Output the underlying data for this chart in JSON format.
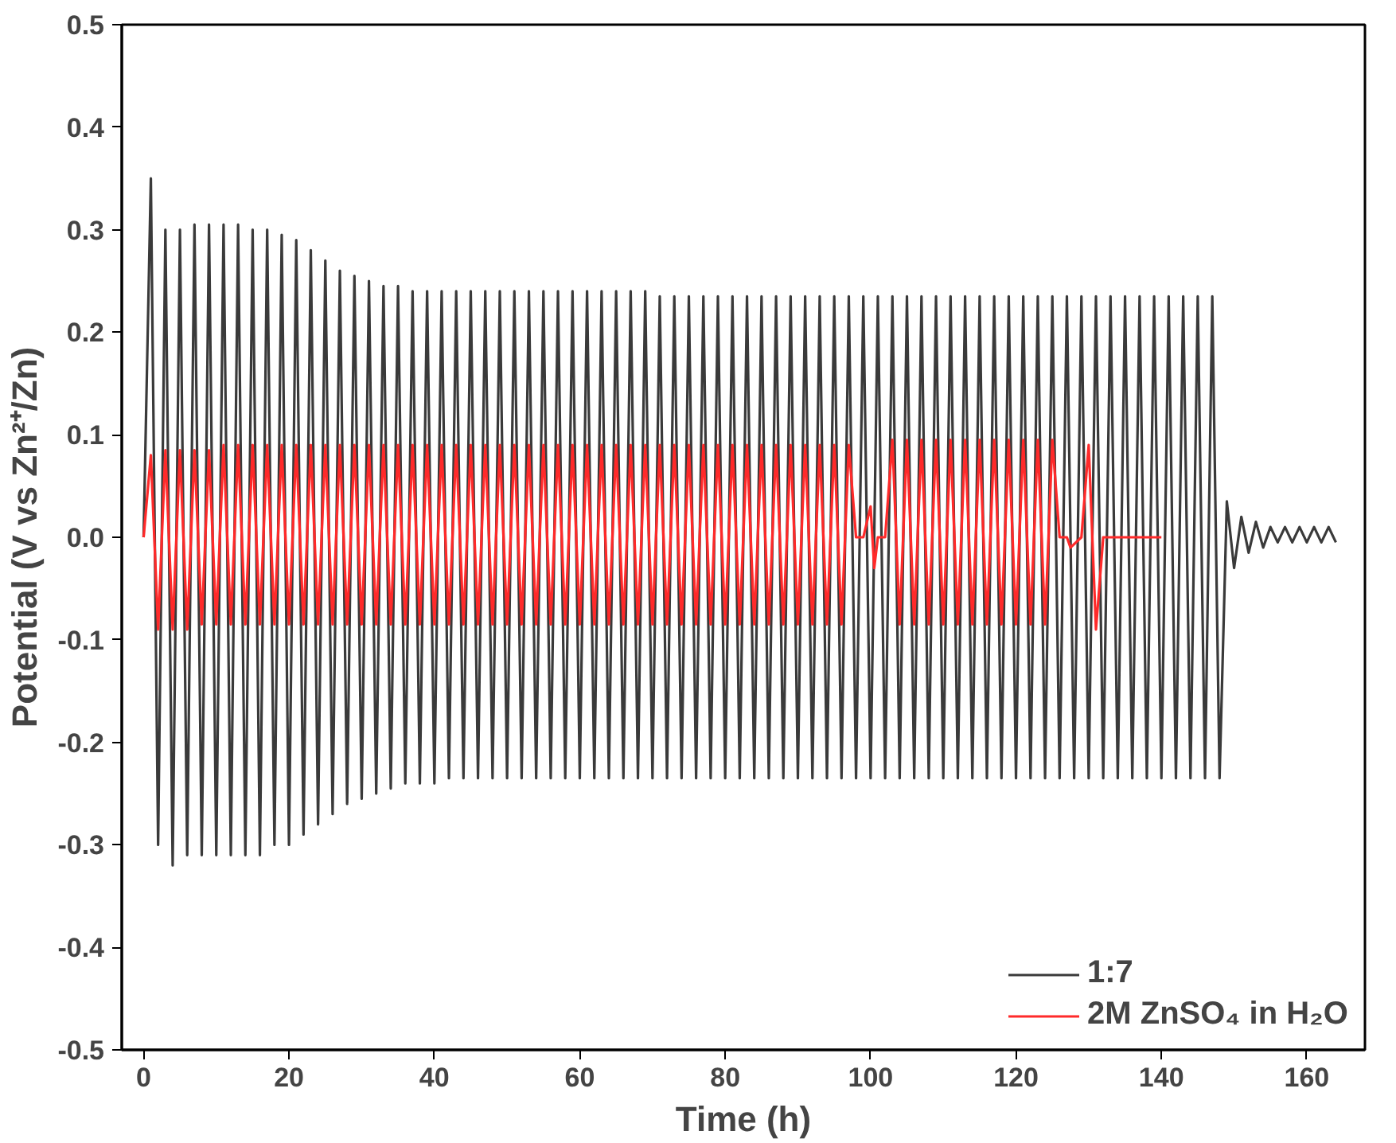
{
  "chart_data": {
    "type": "line",
    "xlabel": "Time (h)",
    "ylabel": "Potential (V vs Zn²⁺/Zn)",
    "xlim": [
      -3,
      168
    ],
    "xticks": [
      0,
      20,
      40,
      60,
      80,
      100,
      120,
      140,
      160
    ],
    "ylim": [
      -0.5,
      0.5
    ],
    "yticks": [
      {
        "value": -0.5,
        "label": "-0.5"
      },
      {
        "value": -0.4,
        "label": "-0.4"
      },
      {
        "value": -0.3,
        "label": "-0.3"
      },
      {
        "value": -0.2,
        "label": "-0.2"
      },
      {
        "value": -0.1,
        "label": "-0.1"
      },
      {
        "value": 0,
        "label": "0.0"
      },
      {
        "value": 0.1,
        "label": "0.1"
      },
      {
        "value": 0.2,
        "label": "0.2"
      },
      {
        "value": 0.3,
        "label": "0.3"
      },
      {
        "value": 0.4,
        "label": "0.4"
      },
      {
        "value": 0.5,
        "label": "0.5"
      }
    ],
    "grid": false,
    "legend": "bottom right",
    "line_style": "solid",
    "series": [
      {
        "name": "1:7",
        "color": "#3a3a3a",
        "x": [
          0,
          1,
          2,
          3,
          4,
          5,
          6,
          7,
          8,
          9,
          10,
          11,
          12,
          13,
          14,
          15,
          16,
          17,
          18,
          19,
          20,
          21,
          22,
          23,
          24,
          25,
          26,
          27,
          28,
          29,
          30,
          31,
          32,
          33,
          34,
          35,
          36,
          37,
          38,
          39,
          40,
          41,
          42,
          43,
          44,
          45,
          46,
          47,
          48,
          49,
          50,
          51,
          52,
          53,
          54,
          55,
          56,
          57,
          58,
          59,
          60,
          61,
          62,
          63,
          64,
          65,
          66,
          67,
          68,
          69,
          70,
          71,
          72,
          73,
          74,
          75,
          76,
          77,
          78,
          79,
          80,
          81,
          82,
          83,
          84,
          85,
          86,
          87,
          88,
          89,
          90,
          91,
          92,
          93,
          94,
          95,
          96,
          97,
          98,
          99,
          100,
          101,
          102,
          103,
          104,
          105,
          106,
          107,
          108,
          109,
          110,
          111,
          112,
          113,
          114,
          115,
          116,
          117,
          118,
          119,
          120,
          121,
          122,
          123,
          124,
          125,
          126,
          127,
          128,
          129,
          130,
          131,
          132,
          133,
          134,
          135,
          136,
          137,
          138,
          139,
          140,
          141,
          142,
          143,
          144,
          145,
          146,
          147,
          148,
          149,
          150,
          151,
          152,
          153,
          154,
          155,
          156,
          157,
          158,
          159,
          160,
          161,
          162,
          163,
          164
        ],
        "values": [
          0.0,
          0.35,
          -0.3,
          0.3,
          -0.32,
          0.3,
          -0.31,
          0.305,
          -0.31,
          0.305,
          -0.31,
          0.305,
          -0.31,
          0.305,
          -0.31,
          0.3,
          -0.31,
          0.3,
          -0.3,
          0.295,
          -0.3,
          0.29,
          -0.29,
          0.28,
          -0.28,
          0.27,
          -0.27,
          0.26,
          -0.26,
          0.255,
          -0.255,
          0.25,
          -0.25,
          0.245,
          -0.245,
          0.245,
          -0.24,
          0.24,
          -0.24,
          0.24,
          -0.24,
          0.24,
          -0.235,
          0.24,
          -0.235,
          0.24,
          -0.235,
          0.24,
          -0.235,
          0.24,
          -0.235,
          0.24,
          -0.235,
          0.24,
          -0.235,
          0.24,
          -0.235,
          0.24,
          -0.235,
          0.24,
          -0.235,
          0.24,
          -0.235,
          0.24,
          -0.235,
          0.24,
          -0.235,
          0.24,
          -0.235,
          0.24,
          -0.235,
          0.235,
          -0.235,
          0.235,
          -0.235,
          0.235,
          -0.235,
          0.235,
          -0.235,
          0.235,
          -0.235,
          0.235,
          -0.235,
          0.235,
          -0.235,
          0.235,
          -0.235,
          0.235,
          -0.235,
          0.235,
          -0.235,
          0.235,
          -0.235,
          0.235,
          -0.235,
          0.235,
          -0.235,
          0.235,
          -0.235,
          0.235,
          -0.235,
          0.235,
          -0.235,
          0.235,
          -0.235,
          0.235,
          -0.235,
          0.235,
          -0.235,
          0.235,
          -0.235,
          0.235,
          -0.235,
          0.235,
          -0.235,
          0.235,
          -0.235,
          0.235,
          -0.235,
          0.235,
          -0.235,
          0.235,
          -0.235,
          0.235,
          -0.235,
          0.235,
          -0.235,
          0.235,
          -0.235,
          0.235,
          -0.235,
          0.235,
          -0.235,
          0.235,
          -0.235,
          0.235,
          -0.235,
          0.235,
          -0.235,
          0.235,
          -0.235,
          0.235,
          -0.235,
          0.235,
          -0.235,
          0.235,
          -0.235,
          0.235,
          -0.235,
          0.035,
          -0.03,
          0.02,
          -0.015,
          0.015,
          -0.01,
          0.01,
          -0.005,
          0.01,
          -0.005,
          0.01,
          -0.005,
          0.01,
          -0.005,
          0.01,
          -0.005
        ]
      },
      {
        "name": "2M ZnSO₄ in H₂O",
        "color": "#ff2a2a",
        "x": [
          0,
          1,
          2,
          3,
          4,
          5,
          6,
          7,
          8,
          9,
          10,
          11,
          12,
          13,
          14,
          15,
          16,
          17,
          18,
          19,
          20,
          21,
          22,
          23,
          24,
          25,
          26,
          27,
          28,
          29,
          30,
          31,
          32,
          33,
          34,
          35,
          36,
          37,
          38,
          39,
          40,
          41,
          42,
          43,
          44,
          45,
          46,
          47,
          48,
          49,
          50,
          51,
          52,
          53,
          54,
          55,
          56,
          57,
          58,
          59,
          60,
          61,
          62,
          63,
          64,
          65,
          66,
          67,
          68,
          69,
          70,
          71,
          72,
          73,
          74,
          75,
          76,
          77,
          78,
          79,
          80,
          81,
          82,
          83,
          84,
          85,
          86,
          87,
          88,
          89,
          90,
          91,
          92,
          93,
          94,
          95,
          96,
          97,
          98,
          99,
          100,
          100.5,
          101,
          102,
          103,
          104,
          105,
          106,
          107,
          108,
          109,
          110,
          111,
          112,
          113,
          114,
          115,
          116,
          117,
          118,
          119,
          120,
          121,
          122,
          123,
          124,
          125,
          126,
          127,
          127.5,
          129,
          130,
          131,
          132,
          132.5,
          133,
          140
        ],
        "values": [
          0.0,
          0.08,
          -0.09,
          0.085,
          -0.09,
          0.085,
          -0.09,
          0.085,
          -0.085,
          0.085,
          -0.085,
          0.09,
          -0.085,
          0.09,
          -0.085,
          0.09,
          -0.085,
          0.09,
          -0.085,
          0.09,
          -0.085,
          0.09,
          -0.085,
          0.09,
          -0.085,
          0.09,
          -0.085,
          0.09,
          -0.085,
          0.09,
          -0.085,
          0.09,
          -0.085,
          0.09,
          -0.085,
          0.09,
          -0.085,
          0.09,
          -0.085,
          0.09,
          -0.085,
          0.09,
          -0.085,
          0.09,
          -0.085,
          0.09,
          -0.085,
          0.09,
          -0.085,
          0.09,
          -0.085,
          0.09,
          -0.085,
          0.09,
          -0.085,
          0.09,
          -0.085,
          0.09,
          -0.085,
          0.09,
          -0.085,
          0.09,
          -0.085,
          0.09,
          -0.085,
          0.09,
          -0.085,
          0.09,
          -0.085,
          0.09,
          -0.085,
          0.09,
          -0.085,
          0.09,
          -0.085,
          0.09,
          -0.085,
          0.09,
          -0.085,
          0.09,
          -0.085,
          0.09,
          -0.085,
          0.09,
          -0.085,
          0.09,
          -0.085,
          0.09,
          -0.085,
          0.09,
          -0.085,
          0.09,
          -0.085,
          0.09,
          -0.085,
          0.09,
          -0.085,
          0.09,
          0.0,
          0.0,
          0.03,
          -0.03,
          0.0,
          0.0,
          0.095,
          -0.085,
          0.095,
          -0.085,
          0.095,
          -0.085,
          0.095,
          -0.085,
          0.095,
          -0.085,
          0.095,
          -0.085,
          0.095,
          -0.085,
          0.095,
          -0.085,
          0.095,
          -0.085,
          0.095,
          -0.085,
          0.095,
          -0.085,
          0.095,
          0.0,
          0.0,
          -0.01,
          0.0,
          0.09,
          -0.09,
          0.0,
          0.0,
          0.0,
          0.0
        ]
      }
    ]
  }
}
